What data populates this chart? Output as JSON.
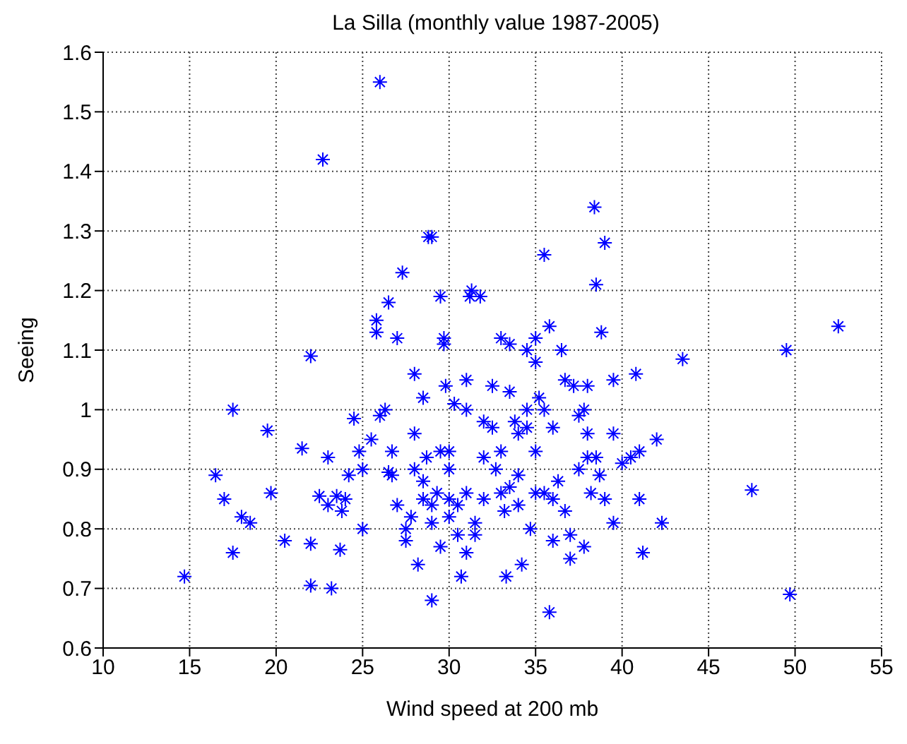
{
  "chart_data": {
    "type": "scatter",
    "title": "La Silla (monthly value 1987-2005)",
    "xlabel": "Wind speed at 200 mb",
    "ylabel": "Seeing",
    "x": [
      14.7,
      16.5,
      17,
      17.5,
      17.5,
      18,
      18.5,
      19.5,
      19.7,
      20.5,
      21.5,
      22,
      22,
      22,
      22.7,
      22.5,
      23,
      23,
      23.2,
      23.5,
      23.7,
      23.8,
      24,
      24.2,
      24.5,
      24.8,
      25,
      25,
      25.5,
      25.8,
      25.8,
      26,
      26,
      26.3,
      26.5,
      26.5,
      26.7,
      26.7,
      27,
      27,
      27.3,
      27.5,
      27.5,
      27.8,
      28,
      28,
      28,
      28.2,
      28.5,
      28.5,
      28.5,
      28.7,
      28.8,
      29,
      29,
      29,
      29,
      29.3,
      29.5,
      29.5,
      29.5,
      29.7,
      29.7,
      29.8,
      30,
      30,
      30,
      30,
      30.3,
      30.5,
      30.5,
      30.7,
      31,
      31,
      31,
      31,
      31.2,
      31.3,
      31.5,
      31.5,
      31.8,
      32,
      32,
      32,
      32.5,
      32.5,
      32.7,
      33,
      33,
      33,
      33.2,
      33.3,
      33.5,
      33.5,
      33.5,
      33.8,
      34,
      34,
      34,
      34.2,
      34.5,
      34.5,
      34.5,
      34.7,
      35,
      35,
      35,
      35,
      35.2,
      35.5,
      35.5,
      35.5,
      35.8,
      35.8,
      36,
      36,
      36,
      36.3,
      36.5,
      36.7,
      36.7,
      37,
      37,
      37.2,
      37.5,
      37.5,
      37.8,
      37.8,
      38,
      38,
      38,
      38.2,
      38.4,
      38.5,
      38.5,
      38.7,
      38.8,
      39,
      39,
      39.5,
      39.5,
      39.5,
      40,
      40.5,
      40.8,
      41,
      41.2,
      41,
      42,
      42.3,
      43.5,
      47.5,
      49.5,
      49.7,
      52.5
    ],
    "values": [
      0.72,
      0.89,
      0.85,
      1.0,
      0.76,
      0.82,
      0.81,
      0.965,
      0.86,
      0.78,
      0.935,
      1.09,
      0.775,
      0.705,
      1.42,
      0.855,
      0.92,
      0.84,
      0.7,
      0.855,
      0.765,
      0.83,
      0.85,
      0.89,
      0.985,
      0.93,
      0.8,
      0.9,
      0.95,
      1.15,
      1.13,
      1.55,
      0.99,
      1.0,
      1.18,
      0.895,
      0.93,
      0.89,
      1.12,
      0.84,
      1.23,
      0.8,
      0.78,
      0.82,
      1.06,
      0.96,
      0.9,
      0.74,
      1.02,
      0.85,
      0.88,
      0.92,
      1.29,
      1.29,
      0.84,
      0.81,
      0.68,
      0.86,
      1.19,
      0.93,
      0.77,
      1.12,
      1.11,
      1.04,
      0.9,
      0.85,
      0.82,
      0.93,
      1.01,
      0.84,
      0.79,
      0.72,
      1.05,
      1.0,
      0.86,
      0.76,
      1.19,
      1.2,
      0.81,
      0.79,
      1.19,
      0.98,
      0.92,
      0.85,
      1.04,
      0.97,
      0.9,
      1.12,
      0.93,
      0.86,
      0.83,
      0.72,
      1.11,
      1.03,
      0.87,
      0.98,
      0.96,
      0.89,
      0.84,
      0.74,
      1.1,
      1.0,
      0.97,
      0.8,
      1.12,
      1.08,
      0.93,
      0.86,
      1.02,
      1.26,
      1.0,
      0.86,
      1.14,
      0.66,
      0.97,
      0.85,
      0.78,
      0.88,
      1.1,
      1.05,
      0.83,
      0.79,
      0.75,
      1.04,
      0.99,
      0.9,
      1.0,
      0.77,
      1.04,
      0.96,
      0.92,
      0.86,
      1.34,
      1.21,
      0.92,
      0.89,
      1.13,
      1.28,
      0.85,
      1.05,
      0.96,
      0.81,
      0.91,
      0.92,
      1.06,
      0.85,
      0.76,
      0.93,
      0.95,
      0.81,
      1.085,
      0.865,
      1.1,
      0.69,
      1.14
    ],
    "color": "#0000ff",
    "marker": "cross",
    "grid": true,
    "xlim": [
      10,
      55
    ],
    "xticks": [
      10,
      15,
      20,
      25,
      30,
      35,
      40,
      45,
      50,
      55
    ],
    "ylim": [
      0.6,
      1.6
    ],
    "yticks": [
      0.6,
      0.7,
      0.8,
      0.9,
      1,
      1.1,
      1.2,
      1.3,
      1.4,
      1.5,
      1.6
    ]
  }
}
